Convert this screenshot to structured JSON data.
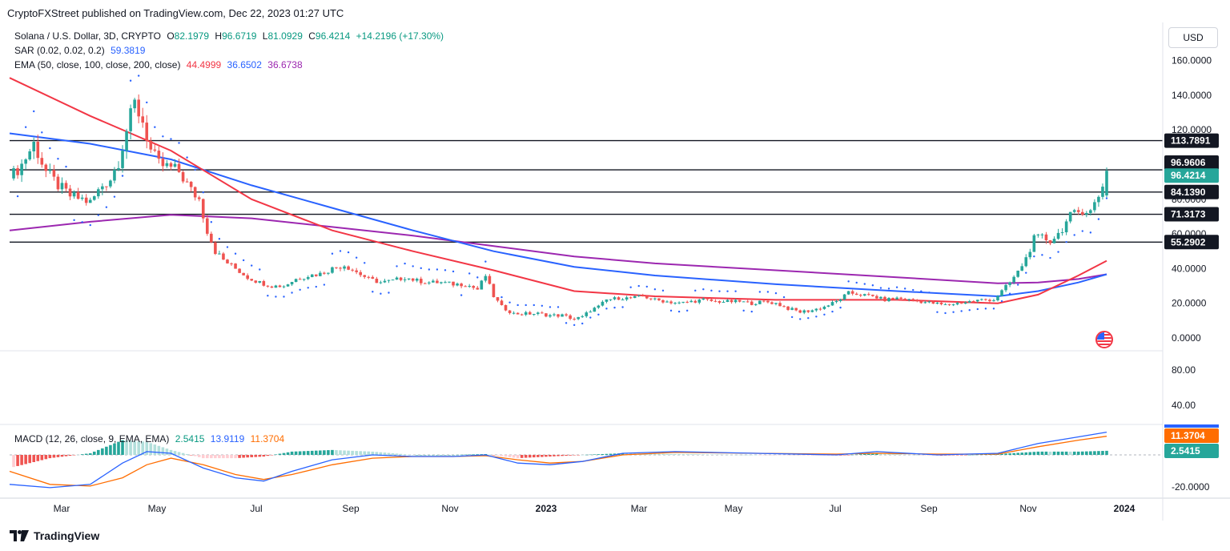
{
  "publisher_line": "CryptoFXStreet published on TradingView.com, Dec 22, 2023 01:27 UTC",
  "footer_brand": "TradingView",
  "currency": "USD",
  "legend": {
    "symbol": "Solana / U.S. Dollar, 3D, CRYPTO",
    "o_label": "O",
    "o": "82.1979",
    "h_label": "H",
    "h": "96.6719",
    "l_label": "L",
    "l": "81.0929",
    "c_label": "C",
    "c": "96.4214",
    "change": "+14.2196 (+17.30%)",
    "sar_label": "SAR (0.02, 0.02, 0.2)",
    "sar": "59.3819",
    "ema_label": "EMA (50, close, 100, close, 200, close)",
    "ema50": "44.4999",
    "ema100": "36.6502",
    "ema200": "36.6738",
    "macd_label": "MACD (12, 26, close, 9, EMA, EMA)",
    "macd_hist": "2.5415",
    "macd_line": "13.9119",
    "macd_signal": "11.3704"
  },
  "colors": {
    "up": "#26a69a",
    "down": "#ef5350",
    "sar": "#2962ff",
    "ema50": "#f23645",
    "ema100": "#2962ff",
    "ema200": "#9c27b0",
    "macd": "#2962ff",
    "signal": "#ff6d00",
    "hist_up": "#26a69a",
    "hist_up_light": "#b2dfdb",
    "hist_down": "#ef5350",
    "hist_down_light": "#ffcdd2"
  },
  "chart_data": {
    "type": "candlestick",
    "x_ticks": [
      "Mar",
      "May",
      "Jul",
      "Sep",
      "Nov",
      "2023",
      "Mar",
      "May",
      "Jul",
      "Sep",
      "Nov",
      "2024"
    ],
    "price_ticks": [
      "160.0000",
      "140.0000",
      "120.0000",
      "100.0000",
      "80.0000",
      "60.0000",
      "40.0000",
      "20.0000",
      "0.0000"
    ],
    "price_ylim": [
      0,
      160
    ],
    "macd_ticks": [
      "80.00",
      "40.00",
      "-20.0000"
    ],
    "horizontal_levels": [
      {
        "value": 113.7891,
        "label": "113.7891"
      },
      {
        "value": 96.9606,
        "label": "96.9606"
      },
      {
        "value": 84.139,
        "label": "84.1390"
      },
      {
        "value": 71.3173,
        "label": "71.3173"
      },
      {
        "value": 55.2902,
        "label": "55.2902"
      }
    ],
    "last_price": {
      "value": 96.4214,
      "label": "96.4214"
    },
    "macd_last": {
      "macd": 13.9119,
      "signal": 11.3704,
      "hist": 2.5415,
      "signal_label": "11.3704",
      "hist_label": "2.5415"
    },
    "close_path": [
      [
        0,
        92
      ],
      [
        3,
        100
      ],
      [
        6,
        112
      ],
      [
        9,
        96
      ],
      [
        12,
        88
      ],
      [
        15,
        82
      ],
      [
        18,
        80
      ],
      [
        20,
        78
      ],
      [
        23,
        88
      ],
      [
        25,
        92
      ],
      [
        27,
        102
      ],
      [
        29,
        120
      ],
      [
        31,
        135
      ],
      [
        33,
        125
      ],
      [
        35,
        108
      ],
      [
        37,
        100
      ],
      [
        40,
        98
      ],
      [
        42,
        96
      ],
      [
        45,
        85
      ],
      [
        47,
        80
      ],
      [
        49,
        62
      ],
      [
        51,
        50
      ],
      [
        53,
        45
      ],
      [
        56,
        40
      ],
      [
        59,
        35
      ],
      [
        62,
        32
      ],
      [
        65,
        30
      ],
      [
        68,
        30
      ],
      [
        71,
        34
      ],
      [
        74,
        36
      ],
      [
        77,
        37
      ],
      [
        80,
        40
      ],
      [
        83,
        42
      ],
      [
        86,
        38
      ],
      [
        89,
        34
      ],
      [
        92,
        32
      ],
      [
        95,
        33
      ],
      [
        98,
        35
      ],
      [
        101,
        33
      ],
      [
        104,
        32
      ],
      [
        107,
        32
      ],
      [
        110,
        31
      ],
      [
        113,
        31
      ],
      [
        116,
        28
      ],
      [
        118,
        36
      ],
      [
        120,
        24
      ],
      [
        122,
        18
      ],
      [
        125,
        14
      ],
      [
        128,
        14
      ],
      [
        131,
        14
      ],
      [
        134,
        13
      ],
      [
        137,
        13
      ],
      [
        140,
        11
      ],
      [
        142,
        12
      ],
      [
        144,
        16
      ],
      [
        146,
        18
      ],
      [
        148,
        22
      ],
      [
        151,
        23
      ],
      [
        154,
        23
      ],
      [
        157,
        24
      ],
      [
        160,
        22
      ],
      [
        163,
        21
      ],
      [
        166,
        20
      ],
      [
        169,
        21
      ],
      [
        172,
        22
      ],
      [
        175,
        21
      ],
      [
        178,
        21
      ],
      [
        181,
        21
      ],
      [
        184,
        20
      ],
      [
        187,
        21
      ],
      [
        190,
        20
      ],
      [
        193,
        17
      ],
      [
        196,
        15
      ],
      [
        199,
        16
      ],
      [
        202,
        18
      ],
      [
        205,
        21
      ],
      [
        208,
        26
      ],
      [
        211,
        25
      ],
      [
        214,
        24
      ],
      [
        217,
        22
      ],
      [
        220,
        23
      ],
      [
        223,
        22
      ],
      [
        226,
        21
      ],
      [
        229,
        20
      ],
      [
        232,
        19
      ],
      [
        235,
        20
      ],
      [
        238,
        21
      ],
      [
        241,
        22
      ],
      [
        244,
        22
      ],
      [
        246,
        27
      ],
      [
        248,
        32
      ],
      [
        250,
        38
      ],
      [
        252,
        46
      ],
      [
        254,
        57
      ],
      [
        256,
        58
      ],
      [
        258,
        56
      ],
      [
        260,
        60
      ],
      [
        263,
        70
      ],
      [
        266,
        74
      ],
      [
        268,
        73
      ],
      [
        270,
        82
      ],
      [
        272,
        96
      ]
    ],
    "ema50_path": [
      [
        0,
        150
      ],
      [
        20,
        128
      ],
      [
        40,
        108
      ],
      [
        60,
        80
      ],
      [
        80,
        62
      ],
      [
        100,
        50
      ],
      [
        120,
        39
      ],
      [
        140,
        27
      ],
      [
        160,
        24
      ],
      [
        190,
        22
      ],
      [
        220,
        22
      ],
      [
        245,
        20
      ],
      [
        255,
        25
      ],
      [
        265,
        36
      ],
      [
        272,
        44.5
      ]
    ],
    "ema100_path": [
      [
        0,
        118
      ],
      [
        20,
        112
      ],
      [
        40,
        103
      ],
      [
        60,
        88
      ],
      [
        80,
        75
      ],
      [
        100,
        62
      ],
      [
        120,
        50
      ],
      [
        140,
        41
      ],
      [
        160,
        36
      ],
      [
        190,
        31
      ],
      [
        220,
        27
      ],
      [
        245,
        24
      ],
      [
        255,
        27
      ],
      [
        265,
        32
      ],
      [
        272,
        36.7
      ]
    ],
    "ema200_path": [
      [
        0,
        62
      ],
      [
        20,
        67
      ],
      [
        40,
        71
      ],
      [
        60,
        69
      ],
      [
        80,
        64
      ],
      [
        100,
        59
      ],
      [
        120,
        53
      ],
      [
        140,
        47
      ],
      [
        160,
        43
      ],
      [
        190,
        39
      ],
      [
        220,
        35
      ],
      [
        245,
        31.5
      ],
      [
        255,
        32
      ],
      [
        265,
        34
      ],
      [
        272,
        36.7
      ]
    ],
    "macd_path": [
      [
        0,
        -18
      ],
      [
        10,
        -20
      ],
      [
        20,
        -18
      ],
      [
        28,
        -5
      ],
      [
        34,
        2
      ],
      [
        40,
        1
      ],
      [
        48,
        -8
      ],
      [
        56,
        -14
      ],
      [
        63,
        -16
      ],
      [
        70,
        -10
      ],
      [
        80,
        -3
      ],
      [
        90,
        0
      ],
      [
        100,
        -1
      ],
      [
        110,
        -1
      ],
      [
        118,
        0
      ],
      [
        126,
        -5
      ],
      [
        134,
        -6
      ],
      [
        142,
        -4
      ],
      [
        152,
        1
      ],
      [
        165,
        2
      ],
      [
        185,
        1
      ],
      [
        205,
        0
      ],
      [
        215,
        2
      ],
      [
        230,
        0
      ],
      [
        245,
        1
      ],
      [
        255,
        7
      ],
      [
        265,
        11
      ],
      [
        272,
        13.9
      ]
    ],
    "signal_path": [
      [
        0,
        -10
      ],
      [
        10,
        -18
      ],
      [
        20,
        -19
      ],
      [
        28,
        -14
      ],
      [
        34,
        -6
      ],
      [
        40,
        -2
      ],
      [
        48,
        -6
      ],
      [
        56,
        -12
      ],
      [
        63,
        -15
      ],
      [
        70,
        -12
      ],
      [
        80,
        -6
      ],
      [
        90,
        -2
      ],
      [
        100,
        -1
      ],
      [
        110,
        -1
      ],
      [
        118,
        -0.5
      ],
      [
        126,
        -3
      ],
      [
        134,
        -5
      ],
      [
        142,
        -4
      ],
      [
        152,
        0
      ],
      [
        165,
        1.5
      ],
      [
        185,
        1
      ],
      [
        205,
        0.5
      ],
      [
        215,
        1
      ],
      [
        230,
        0.5
      ],
      [
        245,
        0.5
      ],
      [
        255,
        5
      ],
      [
        265,
        9
      ],
      [
        272,
        11.4
      ]
    ]
  }
}
